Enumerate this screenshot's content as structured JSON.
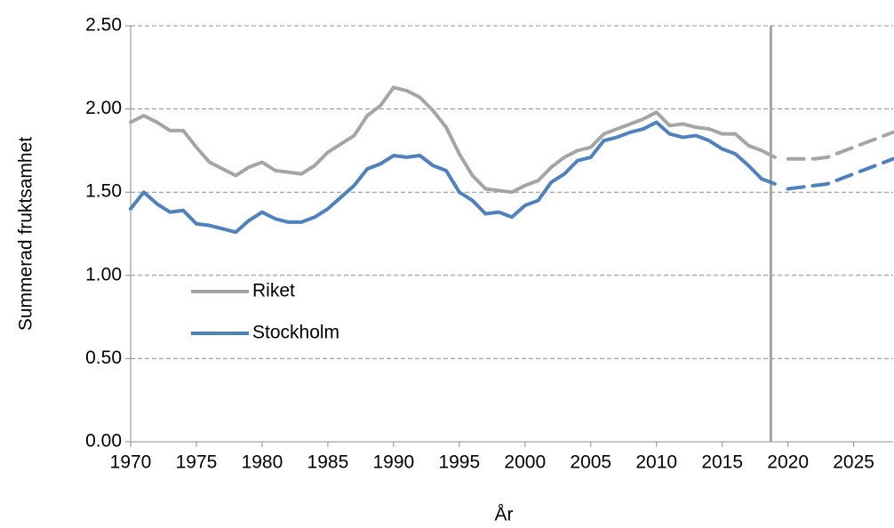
{
  "chart_data": {
    "type": "line",
    "x_label": "År",
    "y_label": "Summerad fruktsamhet",
    "x": [
      1970,
      1971,
      1972,
      1973,
      1974,
      1975,
      1976,
      1977,
      1978,
      1979,
      1980,
      1981,
      1982,
      1983,
      1984,
      1985,
      1986,
      1987,
      1988,
      1989,
      1990,
      1991,
      1992,
      1993,
      1994,
      1995,
      1996,
      1997,
      1998,
      1999,
      2000,
      2001,
      2002,
      2003,
      2004,
      2005,
      2006,
      2007,
      2008,
      2009,
      2010,
      2011,
      2012,
      2013,
      2014,
      2015,
      2016,
      2017,
      2018,
      2019,
      2020,
      2021,
      2022,
      2023,
      2024,
      2025,
      2026,
      2027,
      2028
    ],
    "forecast_start": 2020,
    "vline": 2018.7,
    "series": [
      {
        "name": "Riket",
        "color": "#a5a5a5",
        "values": [
          1.92,
          1.96,
          1.92,
          1.87,
          1.87,
          1.77,
          1.68,
          1.64,
          1.6,
          1.65,
          1.68,
          1.63,
          1.62,
          1.61,
          1.66,
          1.74,
          1.79,
          1.84,
          1.96,
          2.02,
          2.13,
          2.11,
          2.07,
          1.99,
          1.89,
          1.73,
          1.6,
          1.52,
          1.51,
          1.5,
          1.54,
          1.57,
          1.65,
          1.71,
          1.75,
          1.77,
          1.85,
          1.88,
          1.91,
          1.94,
          1.98,
          1.9,
          1.91,
          1.89,
          1.88,
          1.85,
          1.85,
          1.78,
          1.75,
          1.71,
          1.7,
          1.7,
          1.7,
          1.71,
          1.74,
          1.77,
          1.8,
          1.83,
          1.86
        ]
      },
      {
        "name": "Stockholm",
        "color": "#4f81bd",
        "values": [
          1.4,
          1.5,
          1.43,
          1.38,
          1.39,
          1.31,
          1.3,
          1.28,
          1.26,
          1.33,
          1.38,
          1.34,
          1.32,
          1.32,
          1.35,
          1.4,
          1.47,
          1.54,
          1.64,
          1.67,
          1.72,
          1.71,
          1.72,
          1.66,
          1.63,
          1.5,
          1.45,
          1.37,
          1.38,
          1.35,
          1.42,
          1.45,
          1.56,
          1.61,
          1.69,
          1.71,
          1.81,
          1.83,
          1.86,
          1.88,
          1.92,
          1.85,
          1.83,
          1.84,
          1.81,
          1.76,
          1.73,
          1.66,
          1.58,
          1.55,
          1.52,
          1.53,
          1.54,
          1.55,
          1.58,
          1.61,
          1.64,
          1.67,
          1.7
        ]
      }
    ],
    "xlim": [
      1970,
      2028
    ],
    "xticks": [
      1970,
      1975,
      1980,
      1985,
      1990,
      1995,
      2000,
      2005,
      2010,
      2015,
      2020,
      2025
    ],
    "ylim": [
      0,
      2.5
    ],
    "yticks": [
      {
        "value": 0,
        "label": "0.00"
      },
      {
        "value": 0.5,
        "label": "0.50"
      },
      {
        "value": 1,
        "label": "1.00"
      },
      {
        "value": 1.5,
        "label": "1.50"
      },
      {
        "value": 2,
        "label": "2.00"
      },
      {
        "value": 2.5,
        "label": "2.50"
      }
    ],
    "grid": true,
    "legend": "lower left"
  }
}
